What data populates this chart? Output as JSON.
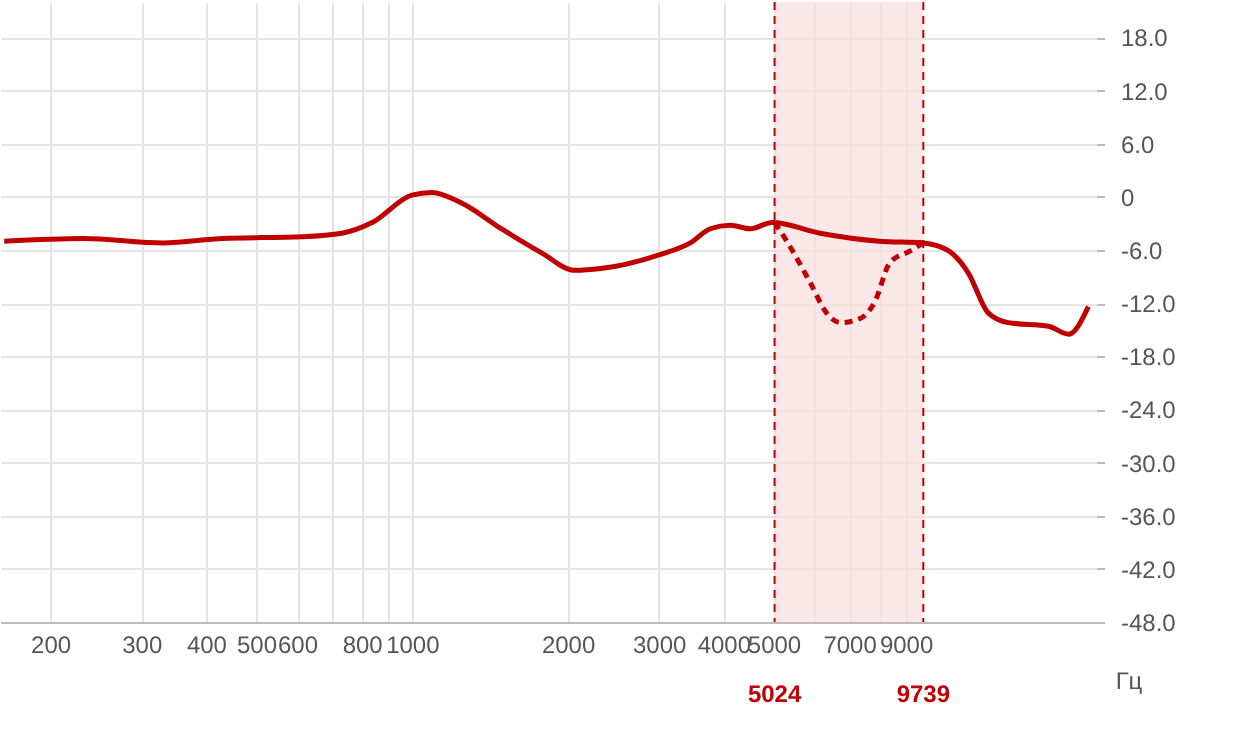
{
  "chart_data": {
    "type": "line",
    "xlabel": "Гц",
    "log": "x",
    "grid": true,
    "line_style": "solid",
    "xlim": [
      160,
      21000
    ],
    "ylim": [
      -48,
      22
    ],
    "xticks": [
      200,
      300,
      400,
      500,
      600,
      {
        "value": 700,
        "label": null
      },
      800,
      {
        "value": 900,
        "label": null
      },
      1000,
      2000,
      3000,
      4000,
      5000,
      {
        "value": 6000,
        "label": null
      },
      7000,
      {
        "value": 8000,
        "label": null
      },
      9000
    ],
    "yticks": [
      {
        "value": -48,
        "label": "-48.0"
      },
      {
        "value": -42,
        "label": "-42.0"
      },
      {
        "value": -36,
        "label": "-36.0"
      },
      {
        "value": -30,
        "label": "-30.0"
      },
      {
        "value": -24,
        "label": "-24.0"
      },
      {
        "value": -18,
        "label": "-18.0"
      },
      {
        "value": -12,
        "label": "-12.0"
      },
      {
        "value": -6,
        "label": "-6.0"
      },
      0,
      {
        "value": 6,
        "label": "6.0"
      },
      {
        "value": 12,
        "label": "12.0"
      },
      {
        "value": 18,
        "label": "18.0"
      }
    ],
    "series": [
      {
        "color": "#c00000",
        "x": [
          163,
          232,
          331,
          431,
          614,
          733,
          838,
          1000,
          1093,
          1248,
          1489,
          1778,
          2067,
          2318,
          3025,
          3453,
          3774,
          4125,
          4508,
          4969,
          6150,
          8000,
          9739,
          10900,
          11900,
          13000,
          14200,
          17000,
          18600,
          20300
        ],
        "values": [
          -5.0,
          -4.7,
          -5.2,
          -4.7,
          -4.5,
          -4.1,
          -2.9,
          0.2,
          0.5,
          -0.7,
          -3.6,
          -6.3,
          -8.3,
          -8.1,
          -6.5,
          -5.2,
          -3.6,
          -3.2,
          -3.6,
          -2.9,
          -4.1,
          -5.0,
          -5.2,
          -6.1,
          -8.6,
          -13.1,
          -14.2,
          -14.6,
          -15.5,
          -12.4
        ]
      },
      {
        "color": "#c00000",
        "line_style": "dashed",
        "x": [
          5024,
          5380,
          5890,
          6330,
          6740,
          7370,
          7840,
          8400,
          9190,
          9739
        ],
        "values": [
          -2.9,
          -5.6,
          -9.7,
          -13.1,
          -14.2,
          -13.7,
          -11.9,
          -7.4,
          -6.1,
          -5.2
        ]
      }
    ],
    "bands": [
      {
        "axis": "x",
        "from": 5024,
        "to": 9739,
        "color": "#f8e0e0"
      }
    ],
    "ref_lines": [
      {
        "axis": "x",
        "value": 5024,
        "label": "5024",
        "color": "#c00000",
        "line_style": "dashed"
      },
      {
        "axis": "x",
        "value": 9739,
        "label": "9739",
        "color": "#c00000",
        "line_style": "dashed"
      }
    ]
  }
}
